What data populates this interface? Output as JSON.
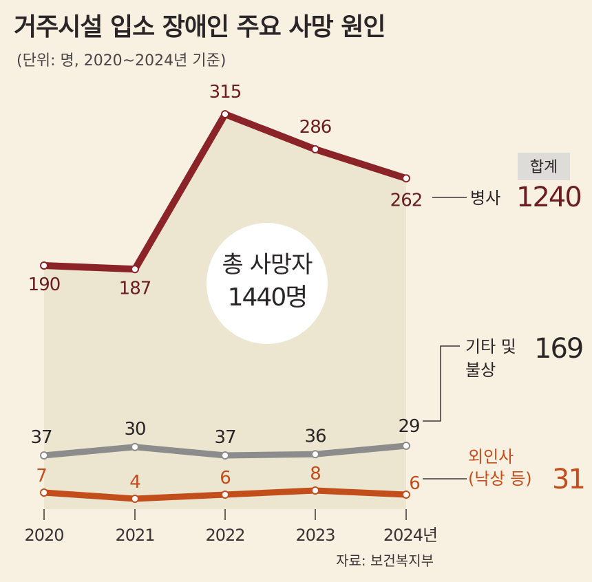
{
  "header": {
    "title": "거주시설 입소 장애인 주요 사망 원인",
    "subtitle": "(단위: 명, 2020~2024년 기준)"
  },
  "center_badge": {
    "line1": "총 사망자",
    "line2": "1440명"
  },
  "total_badge": "합계",
  "source": "자료: 보건복지부",
  "colors": {
    "disease": "#8a2428",
    "other": "#8c8c8c",
    "injury": "#c24e1c",
    "area": "#ece5d0",
    "background": "#f8f1e2"
  },
  "chart_data": {
    "type": "line",
    "categories": [
      "2020",
      "2021",
      "2022",
      "2023",
      "2024년"
    ],
    "series": [
      {
        "key": "disease",
        "name": "병사",
        "values": [
          190,
          187,
          315,
          286,
          262
        ],
        "total": "1240"
      },
      {
        "key": "other",
        "name_line1": "기타 및",
        "name_line2": "불상",
        "values": [
          37,
          30,
          37,
          36,
          29
        ],
        "total": "169"
      },
      {
        "key": "injury",
        "name_line1": "외인사",
        "name_line2": "(낙상 등)",
        "values": [
          7,
          4,
          6,
          8,
          6
        ],
        "total": "31"
      }
    ]
  }
}
